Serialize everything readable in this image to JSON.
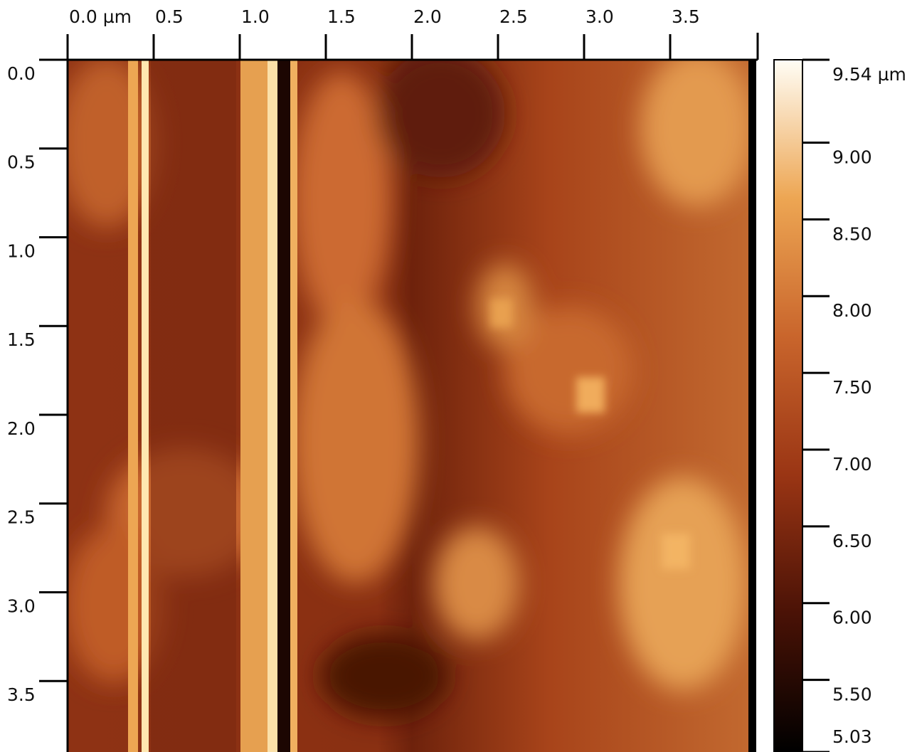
{
  "chart_data": {
    "type": "heatmap",
    "xlim": [
      0,
      4.0
    ],
    "xticks": [
      {
        "value": 0,
        "label": "0.0 µm"
      },
      {
        "value": 0.5,
        "label": "0.5"
      },
      {
        "value": 1.0,
        "label": "1.0"
      },
      {
        "value": 1.5,
        "label": "1.5"
      },
      {
        "value": 2.0,
        "label": "2.0"
      },
      {
        "value": 2.5,
        "label": "2.5"
      },
      {
        "value": 3.0,
        "label": "3.0"
      },
      {
        "value": 3.5,
        "label": "3.5"
      }
    ],
    "ylim": [
      0,
      3.9
    ],
    "yticks": [
      {
        "value": 0,
        "label": "0.0"
      },
      {
        "value": 0.5,
        "label": "0.5"
      },
      {
        "value": 1.0,
        "label": "1.0"
      },
      {
        "value": 1.5,
        "label": "1.5"
      },
      {
        "value": 2.0,
        "label": "2.0"
      },
      {
        "value": 2.5,
        "label": "2.5"
      },
      {
        "value": 3.0,
        "label": "3.0"
      },
      {
        "value": 3.5,
        "label": "3.5"
      }
    ],
    "colorbar": {
      "lim": [
        5.03,
        9.54
      ],
      "ticks": [
        {
          "value": 9.54,
          "label": "9.54 µm"
        },
        {
          "value": 9.0,
          "label": "9.00"
        },
        {
          "value": 8.5,
          "label": "8.50"
        },
        {
          "value": 8.0,
          "label": "8.00"
        },
        {
          "value": 7.5,
          "label": "7.50"
        },
        {
          "value": 7.0,
          "label": "7.00"
        },
        {
          "value": 6.5,
          "label": "6.50"
        },
        {
          "value": 6.0,
          "label": "6.00"
        },
        {
          "value": 5.5,
          "label": "5.50"
        },
        {
          "value": 5.03,
          "label": "5.03"
        }
      ]
    },
    "colormap": [
      "#000000",
      "#4a1206",
      "#9a3514",
      "#c9652c",
      "#eda653",
      "#fffdf5"
    ]
  }
}
